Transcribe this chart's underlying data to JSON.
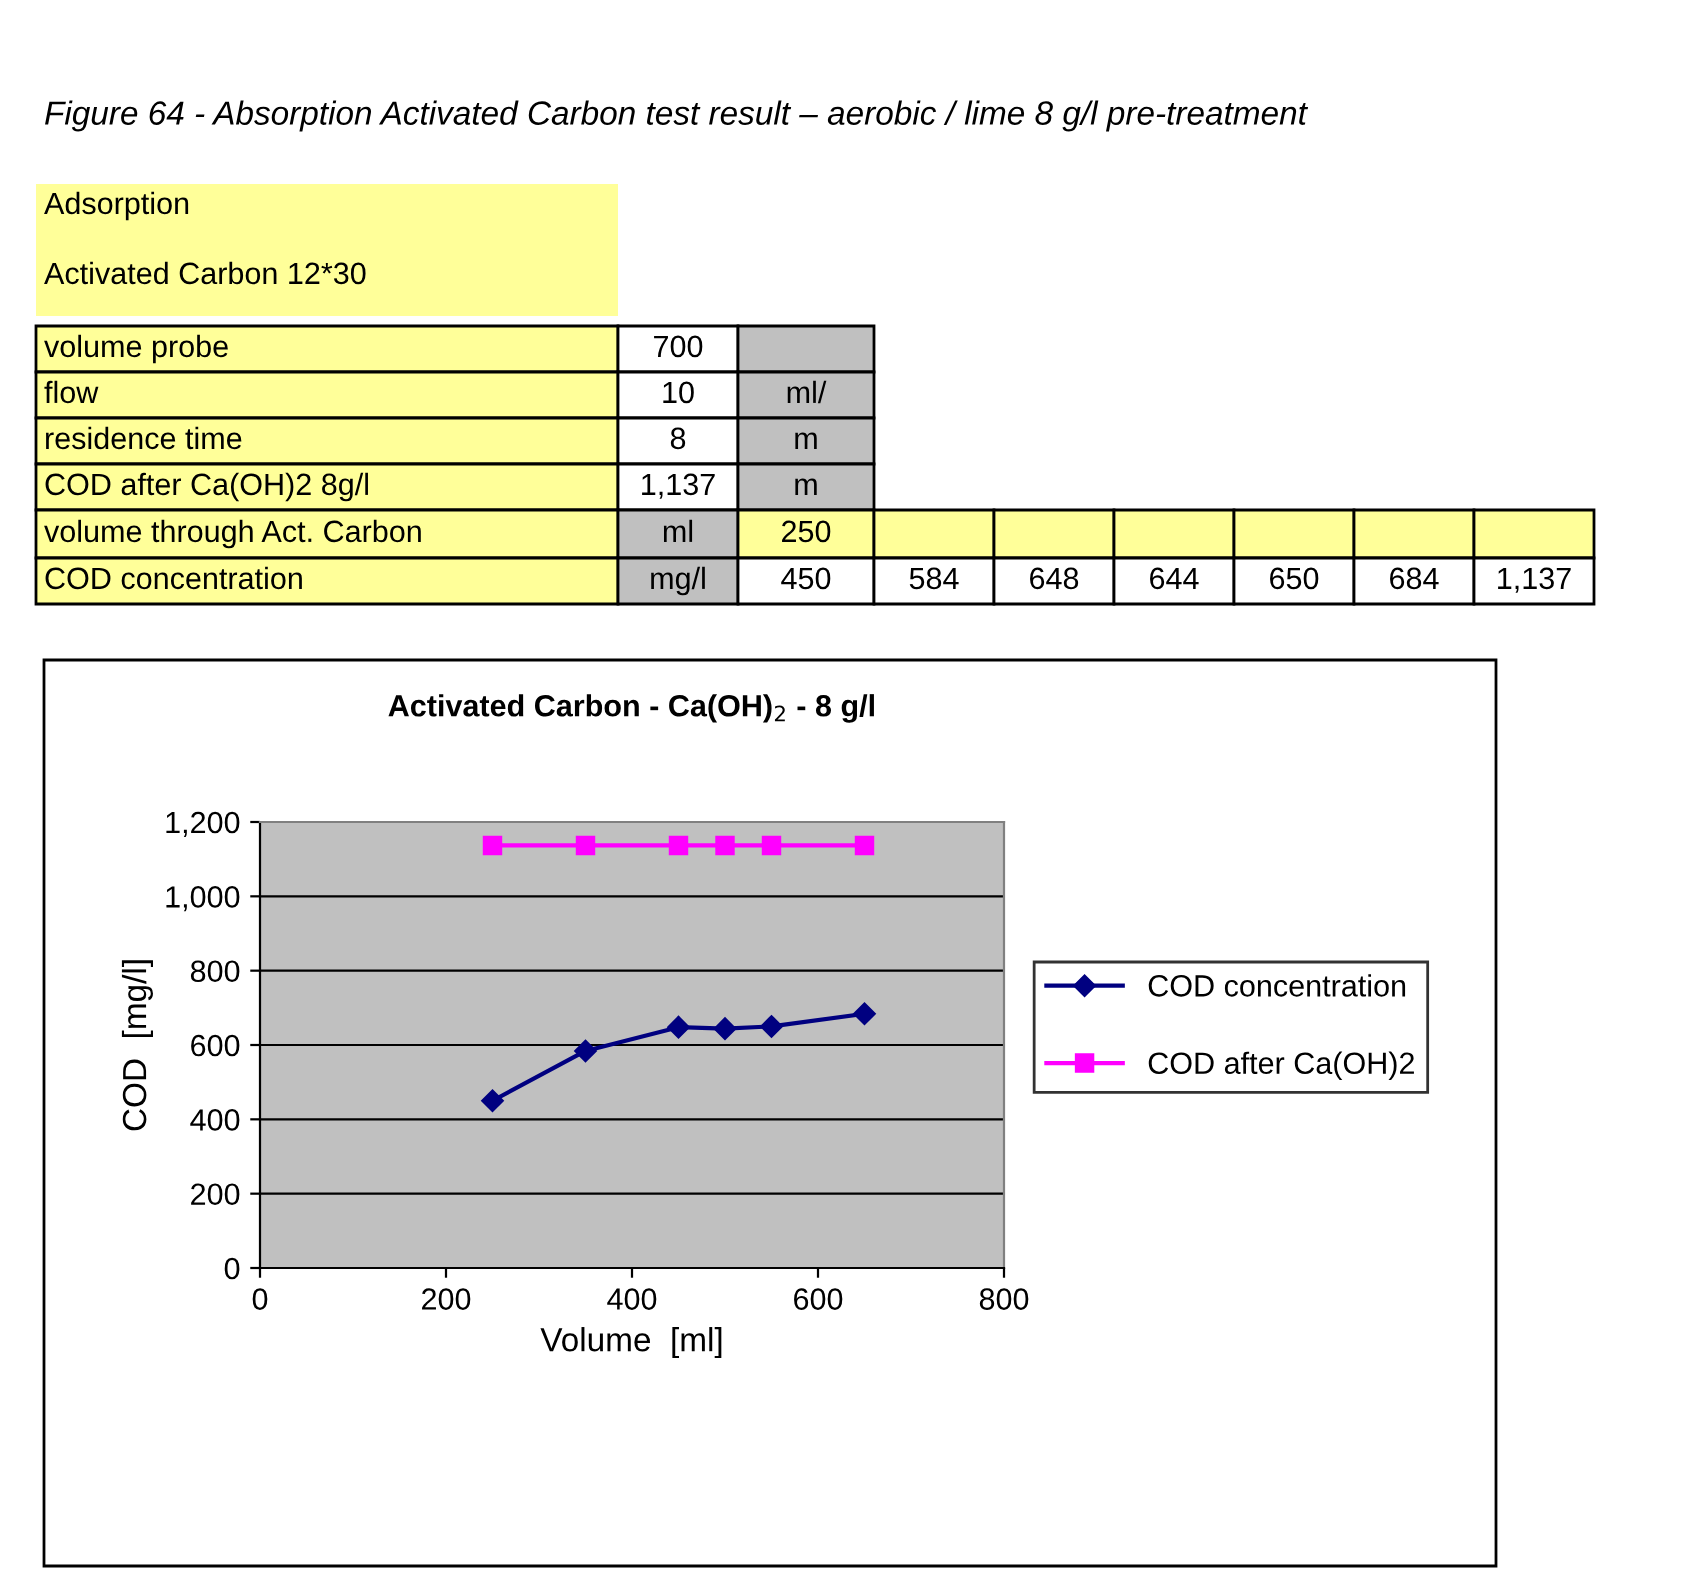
{
  "chart_data": [
    {
      "type": "other",
      "title": "Figure 64 - Absorption Activated Carbon test result – aerobic / lime 8 g/l pre-treatment",
      "annotations": [
        "Adsorption",
        "Activated Carbon 12*30",
        "volume probe",
        "700",
        "flow",
        "10",
        "ml/",
        "residence time",
        "8",
        "m",
        "COD after Ca(OH)2 8g/l",
        "1,137",
        "m",
        "volume through Act. Carbon",
        "ml",
        "250",
        "COD concentration",
        "mg/l",
        "450",
        "584",
        "648",
        "644",
        "650",
        "684",
        "1,137"
      ]
    },
    {
      "type": "line",
      "title": "Activated Carbon - Ca(OH)$_{2}$ - 8 g/l",
      "xlabel": "Volume  [ml]",
      "ylabel": "COD  [mg/l]",
      "x": [
        250,
        350,
        450,
        500,
        550,
        650
      ],
      "series": [
        {
          "name": "COD concentration",
          "color": "#000080",
          "marker": "diamond",
          "values": [
            450,
            584,
            648,
            644,
            650,
            684
          ]
        },
        {
          "name": "COD after Ca(OH)2",
          "color": "#ff00ff",
          "marker": "square",
          "values": [
            1137,
            1137,
            1137,
            1137,
            1137,
            1137
          ]
        }
      ],
      "xlim": [
        0,
        800
      ],
      "xticks": [
        0,
        200,
        400,
        600,
        800
      ],
      "ylim": [
        0,
        1200
      ],
      "yticks": [
        0,
        200,
        400,
        600,
        800,
        {
          "value": 1000,
          "label": "1,000"
        },
        {
          "value": 1200,
          "label": "1,200"
        }
      ],
      "grid": "y",
      "legend": "right",
      "line_style": "solid"
    }
  ]
}
